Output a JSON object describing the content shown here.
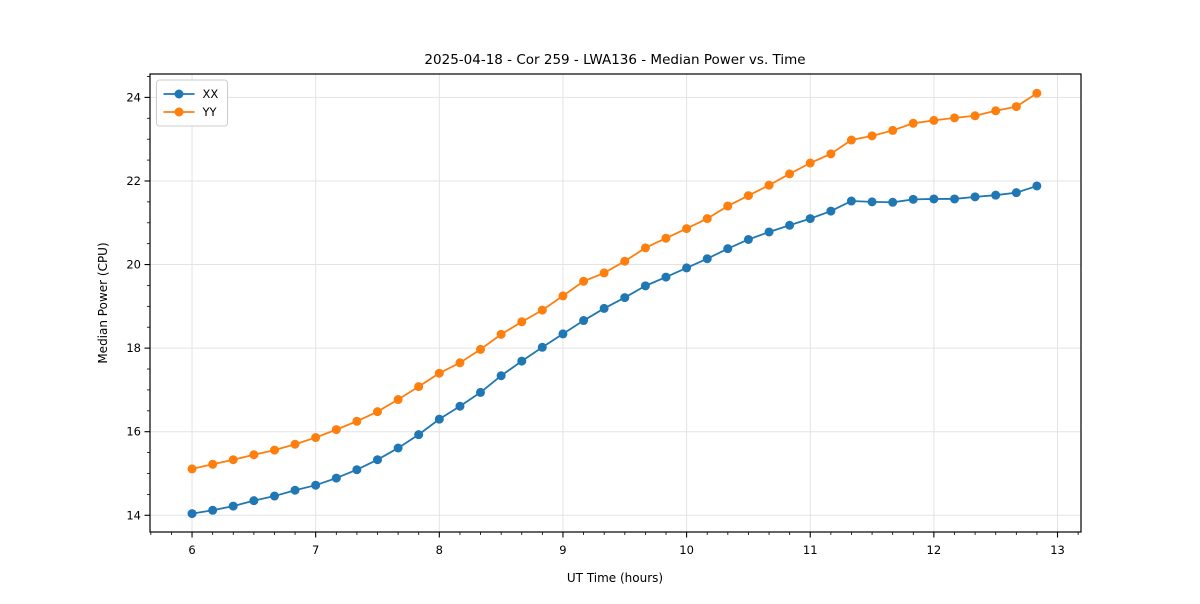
{
  "chart_data": {
    "type": "line",
    "title": "2025-04-18 - Cor 259 - LWA136 - Median Power vs. Time",
    "xlabel": "UT Time (hours)",
    "ylabel": "Median Power (CPU)",
    "xlim": [
      5.66,
      13.19
    ],
    "ylim": [
      13.6,
      24.56
    ],
    "xticks": [
      6,
      7,
      8,
      9,
      10,
      11,
      12,
      13
    ],
    "yticks": [
      14,
      16,
      18,
      20,
      22,
      24
    ],
    "x_minor_step": 0.16667,
    "y_minor_step": 0.5,
    "grid": true,
    "grid_color": "#e3e3e3",
    "background": "#ffffff",
    "legend_position": "upper left",
    "marker": "o",
    "x": [
      6.0,
      6.167,
      6.333,
      6.5,
      6.667,
      6.833,
      7.0,
      7.167,
      7.333,
      7.5,
      7.667,
      7.833,
      8.0,
      8.167,
      8.333,
      8.5,
      8.667,
      8.833,
      9.0,
      9.167,
      9.333,
      9.5,
      9.667,
      9.833,
      10.0,
      10.167,
      10.333,
      10.5,
      10.667,
      10.833,
      11.0,
      11.167,
      11.333,
      11.5,
      11.667,
      11.833,
      12.0,
      12.167,
      12.333,
      12.5,
      12.667,
      12.833
    ],
    "series": [
      {
        "name": "XX",
        "color": "#1f77b4",
        "values": [
          14.04,
          14.12,
          14.22,
          14.35,
          14.46,
          14.6,
          14.72,
          14.89,
          15.09,
          15.33,
          15.61,
          15.93,
          16.3,
          16.61,
          16.94,
          17.34,
          17.69,
          18.02,
          18.34,
          18.66,
          18.95,
          19.21,
          19.49,
          19.7,
          19.92,
          20.14,
          20.38,
          20.6,
          20.78,
          20.94,
          21.1,
          21.28,
          21.52,
          21.5,
          21.49,
          21.56,
          21.57,
          21.57,
          21.62,
          21.66,
          21.72,
          21.88
        ]
      },
      {
        "name": "YY",
        "color": "#ff7f0e",
        "values": [
          15.11,
          15.22,
          15.33,
          15.45,
          15.56,
          15.7,
          15.86,
          16.05,
          16.25,
          16.48,
          16.77,
          17.08,
          17.4,
          17.65,
          17.97,
          18.33,
          18.63,
          18.91,
          19.25,
          19.6,
          19.8,
          20.08,
          20.4,
          20.63,
          20.86,
          21.1,
          21.4,
          21.65,
          21.9,
          22.17,
          22.43,
          22.65,
          22.98,
          23.08,
          23.21,
          23.38,
          23.45,
          23.51,
          23.56,
          23.68,
          23.78,
          24.1
        ]
      }
    ]
  }
}
